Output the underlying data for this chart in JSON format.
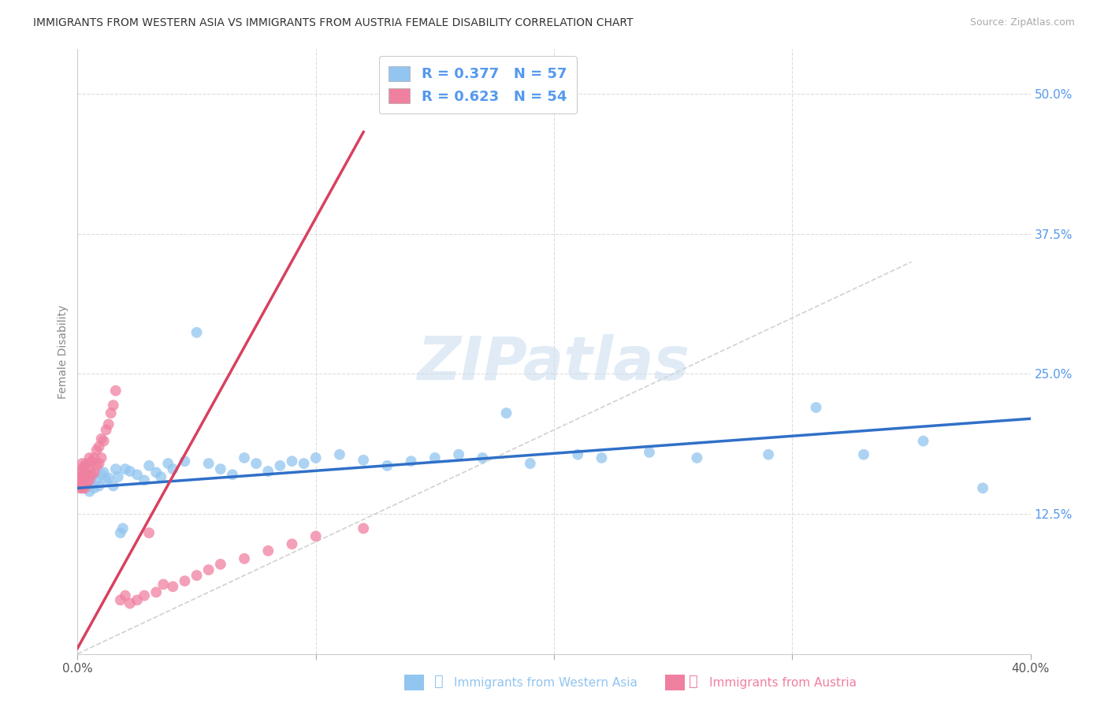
{
  "title": "IMMIGRANTS FROM WESTERN ASIA VS IMMIGRANTS FROM AUSTRIA FEMALE DISABILITY CORRELATION CHART",
  "source": "Source: ZipAtlas.com",
  "xlabel_blue": "Immigrants from Western Asia",
  "xlabel_pink": "Immigrants from Austria",
  "ylabel": "Female Disability",
  "R_blue": 0.377,
  "N_blue": 57,
  "R_pink": 0.623,
  "N_pink": 54,
  "xlim": [
    0.0,
    0.4
  ],
  "ylim": [
    0.0,
    0.54
  ],
  "color_blue": "#92C5F0",
  "color_pink": "#F080A0",
  "line_blue": "#3070C8",
  "line_pink": "#D84060",
  "watermark_color": "#C8DCF0",
  "blue_x": [
    0.001,
    0.002,
    0.003,
    0.004,
    0.005,
    0.006,
    0.007,
    0.008,
    0.009,
    0.01,
    0.011,
    0.012,
    0.013,
    0.015,
    0.016,
    0.017,
    0.018,
    0.019,
    0.02,
    0.022,
    0.025,
    0.028,
    0.03,
    0.033,
    0.035,
    0.038,
    0.04,
    0.045,
    0.05,
    0.055,
    0.06,
    0.065,
    0.07,
    0.075,
    0.08,
    0.085,
    0.09,
    0.095,
    0.1,
    0.11,
    0.12,
    0.13,
    0.14,
    0.15,
    0.16,
    0.17,
    0.18,
    0.19,
    0.21,
    0.22,
    0.24,
    0.26,
    0.29,
    0.31,
    0.33,
    0.355,
    0.38
  ],
  "blue_y": [
    0.155,
    0.148,
    0.15,
    0.152,
    0.145,
    0.158,
    0.148,
    0.155,
    0.15,
    0.16,
    0.162,
    0.155,
    0.157,
    0.15,
    0.165,
    0.158,
    0.108,
    0.112,
    0.165,
    0.163,
    0.16,
    0.155,
    0.168,
    0.162,
    0.158,
    0.17,
    0.165,
    0.172,
    0.287,
    0.17,
    0.165,
    0.16,
    0.175,
    0.17,
    0.163,
    0.168,
    0.172,
    0.17,
    0.175,
    0.178,
    0.173,
    0.168,
    0.172,
    0.175,
    0.178,
    0.175,
    0.215,
    0.17,
    0.178,
    0.175,
    0.18,
    0.175,
    0.178,
    0.22,
    0.178,
    0.19,
    0.148
  ],
  "pink_x": [
    0.001,
    0.001,
    0.001,
    0.001,
    0.001,
    0.002,
    0.002,
    0.002,
    0.002,
    0.002,
    0.003,
    0.003,
    0.003,
    0.003,
    0.004,
    0.004,
    0.004,
    0.005,
    0.005,
    0.005,
    0.006,
    0.006,
    0.007,
    0.007,
    0.008,
    0.008,
    0.009,
    0.009,
    0.01,
    0.01,
    0.011,
    0.012,
    0.013,
    0.014,
    0.015,
    0.016,
    0.018,
    0.02,
    0.022,
    0.025,
    0.028,
    0.03,
    0.033,
    0.036,
    0.04,
    0.045,
    0.05,
    0.055,
    0.06,
    0.07,
    0.08,
    0.09,
    0.1,
    0.12
  ],
  "pink_y": [
    0.148,
    0.152,
    0.155,
    0.158,
    0.162,
    0.148,
    0.152,
    0.158,
    0.165,
    0.17,
    0.148,
    0.155,
    0.162,
    0.168,
    0.152,
    0.16,
    0.17,
    0.155,
    0.165,
    0.175,
    0.16,
    0.172,
    0.162,
    0.175,
    0.168,
    0.182,
    0.17,
    0.185,
    0.175,
    0.192,
    0.19,
    0.2,
    0.205,
    0.215,
    0.222,
    0.235,
    0.048,
    0.052,
    0.045,
    0.048,
    0.052,
    0.108,
    0.055,
    0.062,
    0.06,
    0.065,
    0.07,
    0.075,
    0.08,
    0.085,
    0.092,
    0.098,
    0.105,
    0.112
  ]
}
